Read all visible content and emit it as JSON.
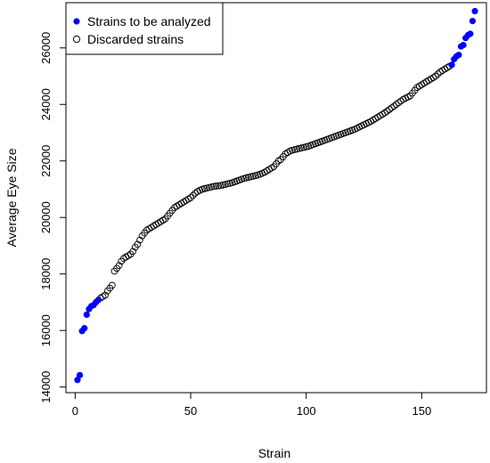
{
  "chart_data": {
    "type": "scatter",
    "title": "",
    "xlabel": "Strain",
    "ylabel": "Average Eye Size",
    "xlim": [
      -4,
      178
    ],
    "ylim": [
      13800,
      27600
    ],
    "xticks": [
      0,
      50,
      100,
      150
    ],
    "yticks": [
      14000,
      16000,
      18000,
      20000,
      22000,
      24000,
      26000
    ],
    "grid": false,
    "legend_position": "top-left",
    "series": [
      {
        "name": "Strains to be analyzed",
        "marker": "filled-circle",
        "color": "#0000FF",
        "x": [
          1,
          2,
          3,
          4,
          5,
          6,
          7,
          8,
          9,
          10,
          163,
          164,
          165,
          166,
          167,
          168,
          169,
          170,
          171,
          172,
          173
        ],
        "y": [
          14250,
          14420,
          15980,
          16080,
          16560,
          16760,
          16860,
          16900,
          17000,
          17080,
          25400,
          25600,
          25700,
          25750,
          26050,
          26100,
          26350,
          26450,
          26500,
          26950,
          27300
        ]
      },
      {
        "name": "Discarded strains",
        "marker": "open-circle",
        "color": "#000000",
        "x": [
          11,
          12,
          13,
          14,
          15,
          16,
          17,
          18,
          19,
          20,
          21,
          22,
          23,
          24,
          25,
          26,
          27,
          28,
          29,
          30,
          31,
          32,
          33,
          34,
          35,
          36,
          37,
          38,
          39,
          40,
          41,
          42,
          43,
          44,
          45,
          46,
          47,
          48,
          49,
          50,
          51,
          52,
          53,
          54,
          55,
          56,
          57,
          58,
          59,
          60,
          61,
          62,
          63,
          64,
          65,
          66,
          67,
          68,
          69,
          70,
          71,
          72,
          73,
          74,
          75,
          76,
          77,
          78,
          79,
          80,
          81,
          82,
          83,
          84,
          85,
          86,
          87,
          88,
          89,
          90,
          91,
          92,
          93,
          94,
          95,
          96,
          97,
          98,
          99,
          100,
          101,
          102,
          103,
          104,
          105,
          106,
          107,
          108,
          109,
          110,
          111,
          112,
          113,
          114,
          115,
          116,
          117,
          118,
          119,
          120,
          121,
          122,
          123,
          124,
          125,
          126,
          127,
          128,
          129,
          130,
          131,
          132,
          133,
          134,
          135,
          136,
          137,
          138,
          139,
          140,
          141,
          142,
          143,
          144,
          145,
          146,
          147,
          148,
          149,
          150,
          151,
          152,
          153,
          154,
          155,
          156,
          157,
          158,
          159,
          160,
          161,
          162
        ],
        "y": [
          17150,
          17200,
          17250,
          17400,
          17500,
          17600,
          18100,
          18200,
          18300,
          18450,
          18550,
          18600,
          18650,
          18700,
          18800,
          18950,
          19050,
          19200,
          19350,
          19450,
          19550,
          19600,
          19650,
          19700,
          19750,
          19800,
          19850,
          19900,
          19950,
          20050,
          20150,
          20250,
          20350,
          20400,
          20450,
          20500,
          20550,
          20600,
          20650,
          20700,
          20780,
          20860,
          20920,
          20960,
          21000,
          21020,
          21040,
          21060,
          21080,
          21100,
          21110,
          21120,
          21130,
          21150,
          21170,
          21190,
          21210,
          21230,
          21260,
          21290,
          21320,
          21350,
          21380,
          21400,
          21420,
          21440,
          21460,
          21480,
          21500,
          21530,
          21560,
          21600,
          21650,
          21700,
          21750,
          21800,
          21900,
          22000,
          22050,
          22150,
          22250,
          22300,
          22350,
          22380,
          22400,
          22420,
          22440,
          22460,
          22480,
          22500,
          22520,
          22550,
          22580,
          22610,
          22640,
          22670,
          22700,
          22730,
          22760,
          22790,
          22820,
          22850,
          22880,
          22910,
          22940,
          22970,
          23000,
          23030,
          23060,
          23090,
          23120,
          23160,
          23200,
          23240,
          23280,
          23320,
          23360,
          23400,
          23450,
          23500,
          23550,
          23600,
          23650,
          23700,
          23760,
          23820,
          23880,
          23940,
          24000,
          24060,
          24120,
          24180,
          24220,
          24260,
          24300,
          24400,
          24500,
          24600,
          24650,
          24700,
          24750,
          24800,
          24850,
          24900,
          24950,
          25000,
          25080,
          25150,
          25200,
          25250,
          25300,
          25350
        ]
      }
    ]
  }
}
